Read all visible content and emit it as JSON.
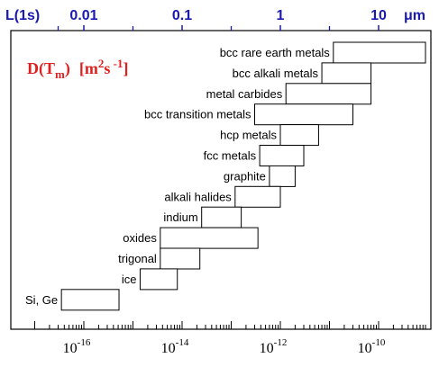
{
  "chart_data": {
    "type": "bar",
    "subtype": "floating-range",
    "quantity_label": {
      "main": "D(T",
      "sub": "m",
      "close": ")",
      "units_open": "[m",
      "units_exp1": "2",
      "units_mid": "s",
      "units_exp2": " -1",
      "units_close": "]"
    },
    "x_axis": {
      "scale": "log",
      "range": [
        1e-17,
        1e-09
      ],
      "bottom_ticks": [
        {
          "value": 1e-16,
          "base": "10",
          "exponent": "-16"
        },
        {
          "value": 1e-14,
          "base": "10",
          "exponent": "-14"
        },
        {
          "value": 1e-12,
          "base": "10",
          "exponent": "-12"
        },
        {
          "value": 1e-10,
          "base": "10",
          "exponent": "-10"
        }
      ]
    },
    "top_axis": {
      "label": "L(1s)",
      "unit": "μm",
      "ticks": [
        {
          "label": "0.01",
          "position_value": 1e-16
        },
        {
          "label": "0.1",
          "position_value": 1e-14
        },
        {
          "label": "1",
          "position_value": 1e-12
        },
        {
          "label": "10",
          "position_value": 1e-10
        }
      ],
      "minor_positions": [
        3e-17,
        1e-15,
        1e-13,
        1e-11
      ]
    },
    "bars": [
      {
        "label": "bcc rare earth metals",
        "min": 1.2e-11,
        "max": 9e-10
      },
      {
        "label": "bcc alkali metals",
        "min": 7e-12,
        "max": 7e-11
      },
      {
        "label": "metal carbides",
        "min": 1.3e-12,
        "max": 7e-11
      },
      {
        "label": "bcc transition metals",
        "min": 3e-13,
        "max": 3e-11
      },
      {
        "label": "hcp metals",
        "min": 1e-12,
        "max": 6e-12
      },
      {
        "label": "fcc metals",
        "min": 3.8e-13,
        "max": 3e-12
      },
      {
        "label": "graphite",
        "min": 6e-13,
        "max": 2e-12
      },
      {
        "label": "alkali halides",
        "min": 1.2e-13,
        "max": 1e-12
      },
      {
        "label": "indium",
        "min": 2.5e-14,
        "max": 1.6e-13
      },
      {
        "label": "oxides",
        "min": 3.6e-15,
        "max": 3.5e-13
      },
      {
        "label": "trigonal",
        "min": 3.6e-15,
        "max": 2.3e-14
      },
      {
        "label": "ice",
        "min": 1.4e-15,
        "max": 8e-15
      },
      {
        "label": "Si, Ge",
        "min": 3.5e-17,
        "max": 5.2e-16
      }
    ],
    "grid": false,
    "legend": "none"
  }
}
